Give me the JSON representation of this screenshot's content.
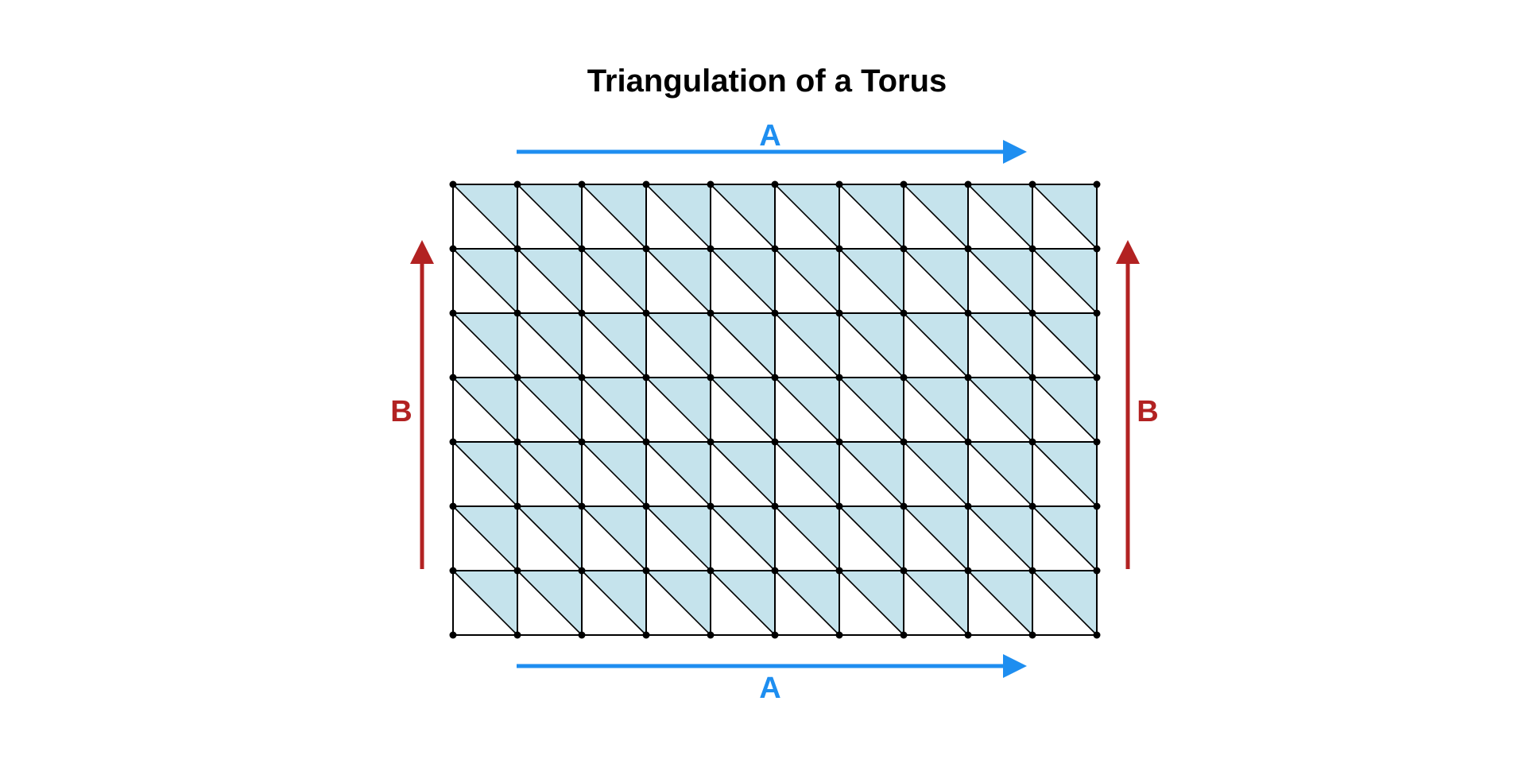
{
  "title": "Triangulation of a Torus",
  "grid": {
    "columns": 10,
    "rows": 7,
    "fill_pattern": "upper-right triangle of each square shaded; diagonal from top-left to bottom-right"
  },
  "edges": {
    "top": {
      "label": "A",
      "direction": "right",
      "color": "#1e8ef0"
    },
    "bottom": {
      "label": "A",
      "direction": "right",
      "color": "#1e8ef0"
    },
    "left": {
      "label": "B",
      "direction": "up",
      "color": "#b22222"
    },
    "right": {
      "label": "B",
      "direction": "up",
      "color": "#b22222"
    }
  },
  "colors": {
    "shaded_triangle": "#c5e3ec",
    "grid_line": "#000000",
    "vertex": "#000000"
  }
}
